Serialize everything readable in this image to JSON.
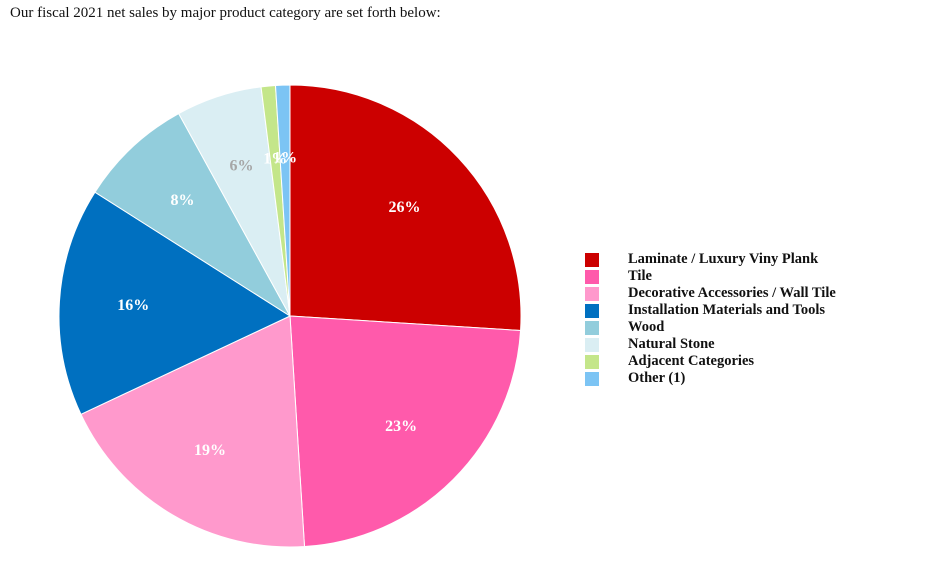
{
  "intro_text": "Our fiscal 2021 net sales by major product category are set forth below:",
  "chart_data": {
    "type": "pie",
    "title": "",
    "legend_position": "right",
    "slices": [
      {
        "label": "Laminate / Luxury Viny Plank",
        "value": 26,
        "display": "26%",
        "color": "#cc0000",
        "label_color": "#ffffff"
      },
      {
        "label": "Tile",
        "value": 23,
        "display": "23%",
        "color": "#ff5aab",
        "label_color": "#ffffff"
      },
      {
        "label": "Decorative Accessories / Wall Tile",
        "value": 19,
        "display": "19%",
        "color": "#ff99cc",
        "label_color": "#ffffff"
      },
      {
        "label": "Installation Materials and Tools",
        "value": 16,
        "display": "16%",
        "color": "#0070c0",
        "label_color": "#ffffff"
      },
      {
        "label": "Wood",
        "value": 8,
        "display": "8%",
        "color": "#92cddc",
        "label_color": "#ffffff"
      },
      {
        "label": "Natural Stone",
        "value": 6,
        "display": "6%",
        "color": "#daeef3",
        "label_color": "#a6a6a6"
      },
      {
        "label": "Adjacent Categories",
        "value": 1,
        "display": "1%",
        "color": "#c4e68a",
        "label_color": "#ffffff"
      },
      {
        "label": "Other (1)",
        "value": 1,
        "display": "1%",
        "color": "#7cc4f4",
        "label_color": "#ffffff"
      }
    ]
  }
}
